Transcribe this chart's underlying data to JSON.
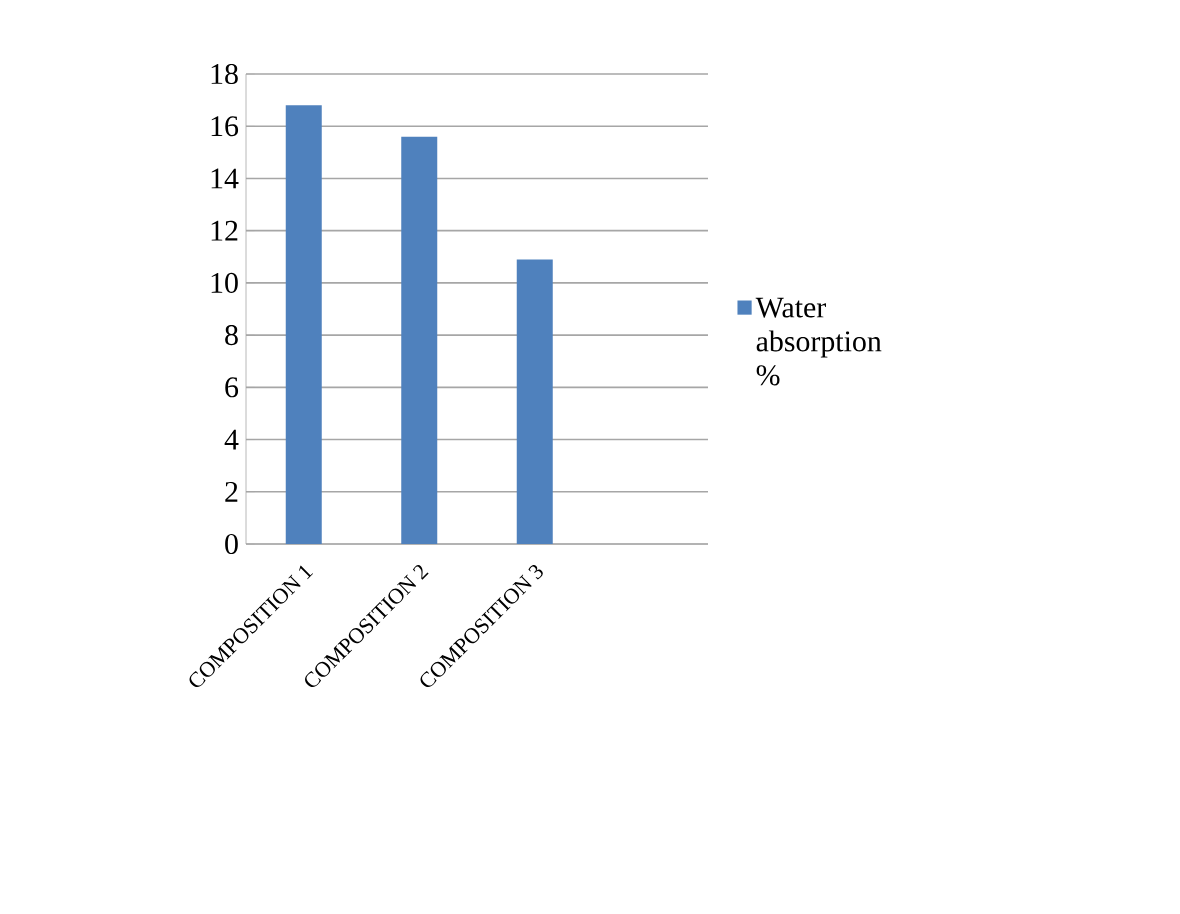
{
  "chart_data": {
    "type": "bar",
    "categories": [
      "COMPOSITION 1",
      "COMPOSITION 2",
      "COMPOSITION 3",
      null
    ],
    "series": [
      {
        "name": "Water absorption %",
        "color": "#4f81bd",
        "values": [
          16.8,
          15.6,
          10.9,
          null
        ]
      }
    ],
    "ylim": [
      0,
      18
    ],
    "yticks": [
      0,
      2,
      4,
      6,
      8,
      10,
      12,
      14,
      16,
      18
    ],
    "grid": "y",
    "legend": "right"
  }
}
